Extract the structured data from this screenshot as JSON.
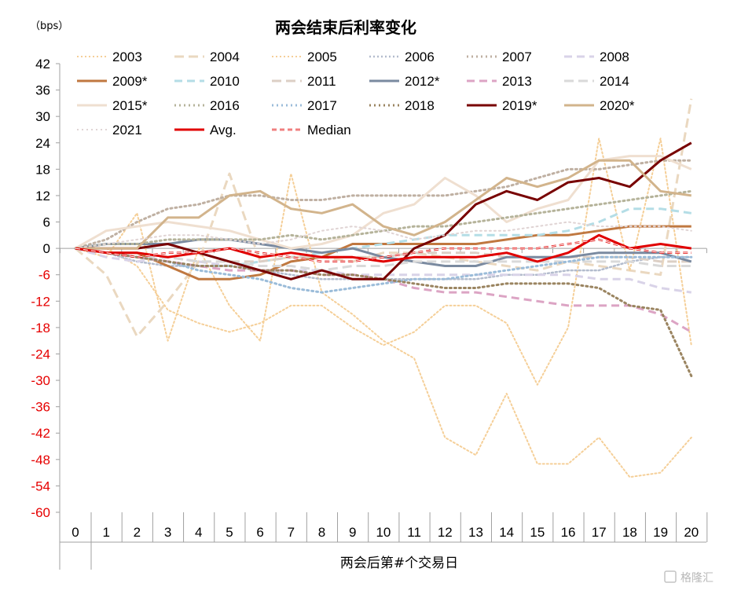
{
  "chart_data": {
    "type": "line",
    "title": "两会结束后利率变化",
    "unit": "（bps）",
    "xlabel": "两会后第#个交易日",
    "x": [
      0,
      1,
      2,
      3,
      4,
      5,
      6,
      7,
      8,
      9,
      10,
      11,
      12,
      13,
      14,
      15,
      16,
      17,
      18,
      19,
      20
    ],
    "ylim": [
      -60,
      42
    ],
    "yticks": [
      42,
      36,
      30,
      24,
      18,
      12,
      6,
      0,
      -6,
      -12,
      -18,
      -24,
      -30,
      -36,
      -42,
      -48,
      -54,
      -60
    ],
    "ytick_labels": [
      "42",
      "36",
      "30",
      "24",
      "18",
      "12",
      "6",
      "0",
      "-6",
      "-12",
      "-18",
      "-24",
      "-30",
      "-36",
      "-42",
      "-48",
      "-54",
      "-60"
    ],
    "negative_tick_color": "#e60000",
    "positive_tick_color": "#000000",
    "legend_position": "top",
    "series": [
      {
        "name": "2003",
        "color": "#f5cf98",
        "dash": "2 3",
        "width": 2,
        "values": [
          0,
          -2,
          8,
          -21,
          0,
          -13,
          -21,
          17,
          -10,
          -15,
          -21,
          -25,
          -43,
          -47,
          -33,
          -49,
          -49,
          -43,
          -52,
          -51,
          -43
        ]
      },
      {
        "name": "2004",
        "color": "#ead8c0",
        "dash": "12 6",
        "width": 3,
        "values": [
          0,
          -6,
          -20,
          -12,
          -3,
          17,
          -3,
          -2,
          -2,
          -3,
          -1,
          -1,
          -2,
          -3,
          -4,
          -5,
          -3,
          -4,
          -5,
          -6,
          34
        ]
      },
      {
        "name": "2005",
        "color": "#f5cf98",
        "dash": "2 3",
        "width": 2,
        "values": [
          0,
          0,
          -4,
          -14,
          -17,
          -19,
          -17,
          -13,
          -13,
          -18,
          -22,
          -19,
          -13,
          -13,
          -17,
          -31,
          -18,
          25,
          -5,
          25,
          -22
        ]
      },
      {
        "name": "2006",
        "color": "#b3bccd",
        "dash": "2 3",
        "width": 2.5,
        "values": [
          0,
          -1,
          -3,
          -4,
          -4,
          -4,
          -5,
          -6,
          -7,
          -7,
          -7,
          -7,
          -7,
          -7,
          -6,
          -6,
          -5,
          -5,
          -3,
          -2,
          -2
        ]
      },
      {
        "name": "2007",
        "color": "#bfb0a2",
        "dash": "2 4",
        "width": 3,
        "values": [
          0,
          2,
          6,
          9,
          10,
          12,
          12,
          11,
          11,
          12,
          12,
          12,
          12,
          13,
          14,
          16,
          18,
          18,
          19,
          20,
          20
        ]
      },
      {
        "name": "2008",
        "color": "#d9d3e8",
        "dash": "10 6",
        "width": 3,
        "values": [
          0,
          -2,
          -3,
          -2,
          -3,
          -4,
          -5,
          -5,
          -5,
          -6,
          -6,
          -6,
          -6,
          -6,
          -6,
          -6,
          -6,
          -7,
          -7,
          -9,
          -10
        ]
      },
      {
        "name": "2009*",
        "color": "#c07840",
        "dash": "",
        "width": 3,
        "values": [
          0,
          -1,
          -1,
          -4,
          -7,
          -7,
          -6,
          -3,
          -2,
          1,
          1,
          1,
          1,
          1,
          2,
          3,
          3,
          4,
          5,
          5,
          5
        ]
      },
      {
        "name": "2010",
        "color": "#b4dde6",
        "dash": "10 6",
        "width": 3,
        "values": [
          0,
          -1,
          -2,
          -3,
          -4,
          -4,
          -3,
          -2,
          -1,
          0,
          1,
          2,
          3,
          3,
          3,
          3,
          4,
          6,
          9,
          9,
          8
        ]
      },
      {
        "name": "2011",
        "color": "#dccfc5",
        "dash": "12 6",
        "width": 3,
        "values": [
          0,
          -1,
          -2,
          -2,
          -3,
          -3,
          -3,
          -2,
          -2,
          -2,
          -2,
          -1,
          -1,
          -1,
          -2,
          -2,
          -2,
          -2,
          -2,
          -3,
          -3
        ]
      },
      {
        "name": "2012*",
        "color": "#7a8aa0",
        "dash": "",
        "width": 3,
        "values": [
          0,
          1,
          1,
          1,
          2,
          2,
          1,
          0,
          -1,
          0,
          -2,
          -3,
          -4,
          -4,
          -2,
          -2,
          -2,
          -1,
          -1,
          -1,
          -3
        ]
      },
      {
        "name": "2013",
        "color": "#dca4c4",
        "dash": "10 6",
        "width": 3,
        "values": [
          0,
          -1,
          -2,
          -3,
          -4,
          -5,
          -5,
          -5,
          -6,
          -6,
          -7,
          -9,
          -10,
          -10,
          -11,
          -12,
          -13,
          -13,
          -13,
          -15,
          -19
        ]
      },
      {
        "name": "2014",
        "color": "#d9d9d9",
        "dash": "12 6",
        "width": 3,
        "values": [
          0,
          -1,
          -2,
          -2,
          -3,
          -3,
          -4,
          -4,
          -5,
          -4,
          -4,
          -3,
          -3,
          -3,
          -3,
          -3,
          -3,
          -3,
          -3,
          -4,
          -4
        ]
      },
      {
        "name": "2015*",
        "color": "#efdfd0",
        "dash": "",
        "width": 3,
        "values": [
          0,
          4,
          5,
          6,
          5,
          4,
          2,
          0,
          1,
          3,
          8,
          10,
          16,
          12,
          6,
          9,
          11,
          20,
          21,
          21,
          18
        ]
      },
      {
        "name": "2016",
        "color": "#b5b39a",
        "dash": "2 4",
        "width": 3,
        "values": [
          0,
          1,
          1,
          2,
          2,
          2,
          2,
          3,
          2,
          3,
          4,
          5,
          5,
          6,
          7,
          8,
          9,
          10,
          11,
          12,
          13
        ]
      },
      {
        "name": "2017",
        "color": "#9bbcd9",
        "dash": "2 4",
        "width": 3,
        "values": [
          0,
          -1,
          -2,
          -3,
          -5,
          -6,
          -7,
          -9,
          -10,
          -9,
          -8,
          -7,
          -7,
          -6,
          -5,
          -4,
          -3,
          -2,
          -2,
          -2,
          -2
        ]
      },
      {
        "name": "2018",
        "color": "#9a8460",
        "dash": "2 4",
        "width": 3,
        "values": [
          0,
          -1,
          -2,
          -3,
          -4,
          -4,
          -5,
          -5,
          -6,
          -6,
          -7,
          -8,
          -9,
          -9,
          -8,
          -8,
          -8,
          -9,
          -13,
          -14,
          -29
        ]
      },
      {
        "name": "2019*",
        "color": "#780000",
        "dash": "",
        "width": 3,
        "values": [
          0,
          0,
          0,
          1,
          -1,
          -3,
          -5,
          -7,
          -5,
          -7,
          -7,
          0,
          3,
          10,
          13,
          11,
          15,
          16,
          14,
          20,
          24
        ]
      },
      {
        "name": "2020*",
        "color": "#d2b48c",
        "dash": "",
        "width": 3,
        "values": [
          0,
          0,
          0,
          7,
          7,
          12,
          13,
          9,
          8,
          10,
          5,
          3,
          6,
          11,
          16,
          14,
          16,
          20,
          20,
          13,
          12
        ]
      },
      {
        "name": "2021",
        "color": "#e0d4d4",
        "dash": "2 4",
        "width": 2,
        "values": [
          0,
          1,
          2,
          3,
          3,
          2,
          1,
          2,
          4,
          5,
          4,
          2,
          3,
          4,
          4,
          5,
          6,
          5,
          5,
          5,
          4
        ]
      },
      {
        "name": "Avg.",
        "color": "#e00000",
        "dash": "",
        "width": 3,
        "values": [
          0,
          -1,
          -1,
          -2,
          -1,
          0,
          -2,
          -1,
          -2,
          -2,
          -3,
          -2,
          -2,
          -2,
          -1,
          -3,
          -1,
          3,
          0,
          1,
          0
        ]
      },
      {
        "name": "Median",
        "color": "#e00000",
        "dash": "6 4",
        "width": 2.5,
        "double": true,
        "values": [
          0,
          -1,
          -2,
          -1,
          -1,
          0,
          -1,
          -2,
          -3,
          -3,
          -2,
          -1,
          0,
          0,
          0,
          0,
          1,
          2,
          0,
          -1,
          -1
        ]
      }
    ]
  },
  "watermark": "格隆汇"
}
